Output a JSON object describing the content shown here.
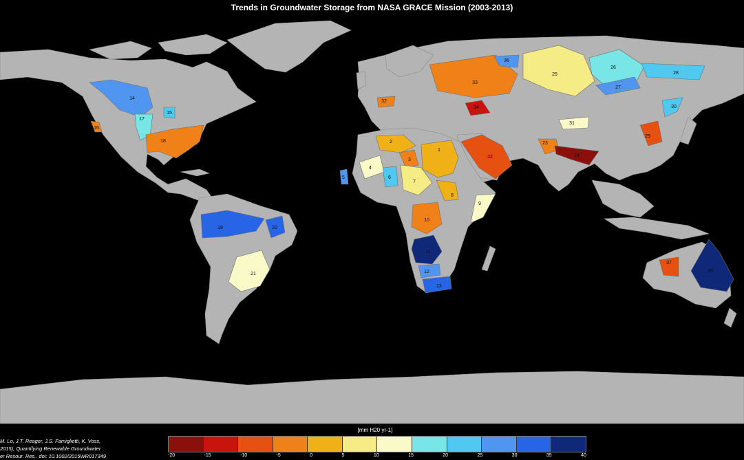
{
  "title": "Trends in Groundwater Storage from NASA GRACE Mission (2003-2013)",
  "legend": {
    "unit": "[mm H20 yr-1]",
    "colors": [
      "#8b0f0b",
      "#c8140c",
      "#e65010",
      "#f08018",
      "#f0b018",
      "#f5ec85",
      "#fafac8",
      "#78e6e6",
      "#50c8f0",
      "#5096f0",
      "#2864e6",
      "#102878"
    ],
    "ticks": [
      "-20",
      "-15",
      "-10",
      "-5",
      "0",
      "5",
      "10",
      "15",
      "20",
      "25",
      "30",
      "35",
      "40"
    ]
  },
  "citation": [
    "M. Lo, J.T. Reager, J.S. Famiglietti, K. Voss,",
    "2015), Quantifying Renewable Groundwater",
    "er Resour. Res., doi: 10.1002/2015WR017349"
  ],
  "basins": [
    {
      "label": "1",
      "color": "#f0b018"
    },
    {
      "label": "2",
      "color": "#f0b018"
    },
    {
      "label": "3",
      "color": "#f08018"
    },
    {
      "label": "4",
      "color": "#fafac8"
    },
    {
      "label": "5",
      "color": "#5096f0"
    },
    {
      "label": "6",
      "color": "#50c8f0"
    },
    {
      "label": "7",
      "color": "#f5ec85"
    },
    {
      "label": "8",
      "color": "#f0b018"
    },
    {
      "label": "9",
      "color": "#fafac8"
    },
    {
      "label": "10",
      "color": "#f08018"
    },
    {
      "label": "11",
      "color": "#102878"
    },
    {
      "label": "12",
      "color": "#5096f0"
    },
    {
      "label": "13",
      "color": "#2864e6"
    },
    {
      "label": "14",
      "color": "#5096f0"
    },
    {
      "label": "15",
      "color": "#50c8f0"
    },
    {
      "label": "16",
      "color": "#f08018"
    },
    {
      "label": "17",
      "color": "#78e6e6"
    },
    {
      "label": "18",
      "color": "#f08018"
    },
    {
      "label": "19",
      "color": "#2864e6"
    },
    {
      "label": "20",
      "color": "#2864e6"
    },
    {
      "label": "21",
      "color": "#fafac8"
    },
    {
      "label": "22",
      "color": "#e65010"
    },
    {
      "label": "23",
      "color": "#f08018"
    },
    {
      "label": "24",
      "color": "#8b0f0b"
    },
    {
      "label": "25",
      "color": "#f5ec85"
    },
    {
      "label": "26",
      "color": "#78e6e6"
    },
    {
      "label": "27",
      "color": "#5096f0"
    },
    {
      "label": "28",
      "color": "#50c8f0"
    },
    {
      "label": "29",
      "color": "#e65010"
    },
    {
      "label": "30",
      "color": "#50c8f0"
    },
    {
      "label": "31",
      "color": "#fafac8"
    },
    {
      "label": "32",
      "color": "#f08018"
    },
    {
      "label": "33",
      "color": "#f08018"
    },
    {
      "label": "34",
      "color": "#c8140c"
    },
    {
      "label": "35",
      "color": "#102878"
    },
    {
      "label": "36",
      "color": "#5096f0"
    },
    {
      "label": "37",
      "color": "#e65010"
    }
  ]
}
